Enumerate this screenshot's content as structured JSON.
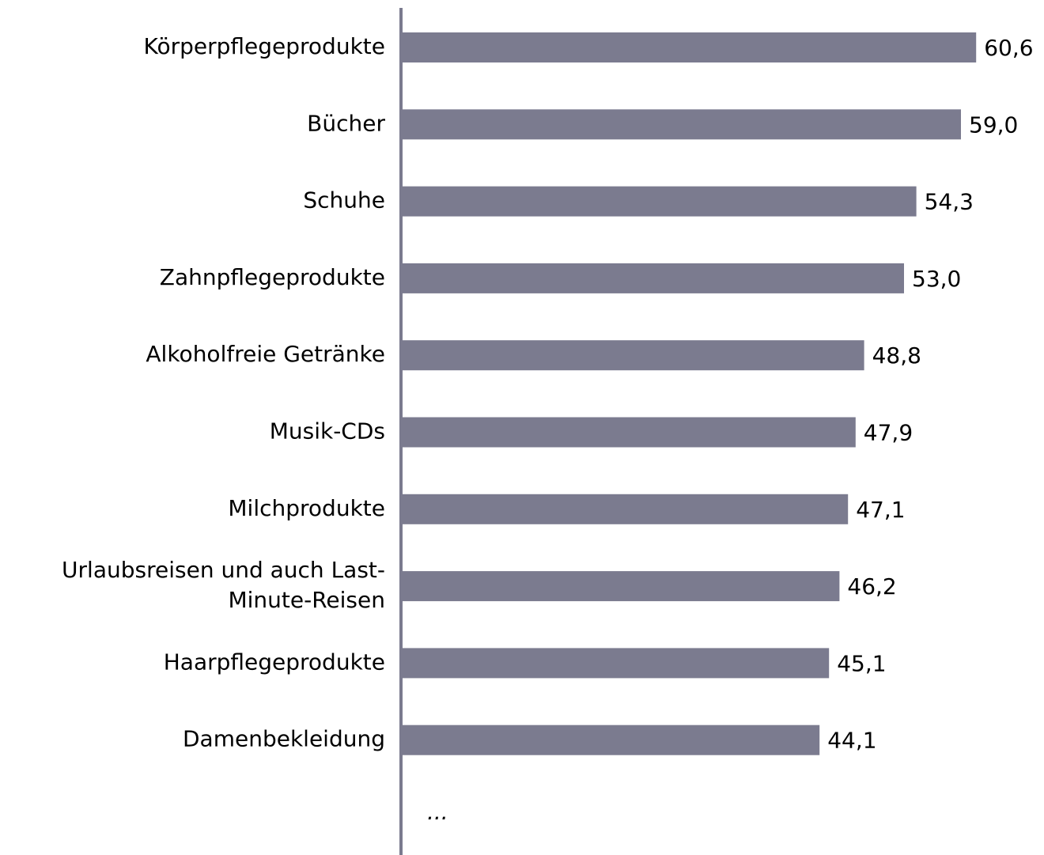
{
  "chart_data": {
    "type": "bar",
    "orientation": "horizontal",
    "categories": [
      "Körperpflegeprodukte",
      "Bücher",
      "Schuhe",
      "Zahnpflegeprodukte",
      "Alkoholfreie Getränke",
      "Musik-CDs",
      "Milchprodukte",
      "Urlaubsreisen und auch Last-\nMinute-Reisen",
      "Haarpflegeprodukte",
      "Damenbekleidung"
    ],
    "values": [
      60.6,
      59.0,
      54.3,
      53.0,
      48.8,
      47.9,
      47.1,
      46.2,
      45.1,
      44.1
    ],
    "value_labels": [
      "60,6",
      "59,0",
      "54,3",
      "53,0",
      "48,8",
      "47,9",
      "47,1",
      "46,2",
      "45,1",
      "44,1"
    ],
    "color": "#7b7b8f",
    "xlim": [
      0,
      66
    ],
    "annotation": "..."
  }
}
